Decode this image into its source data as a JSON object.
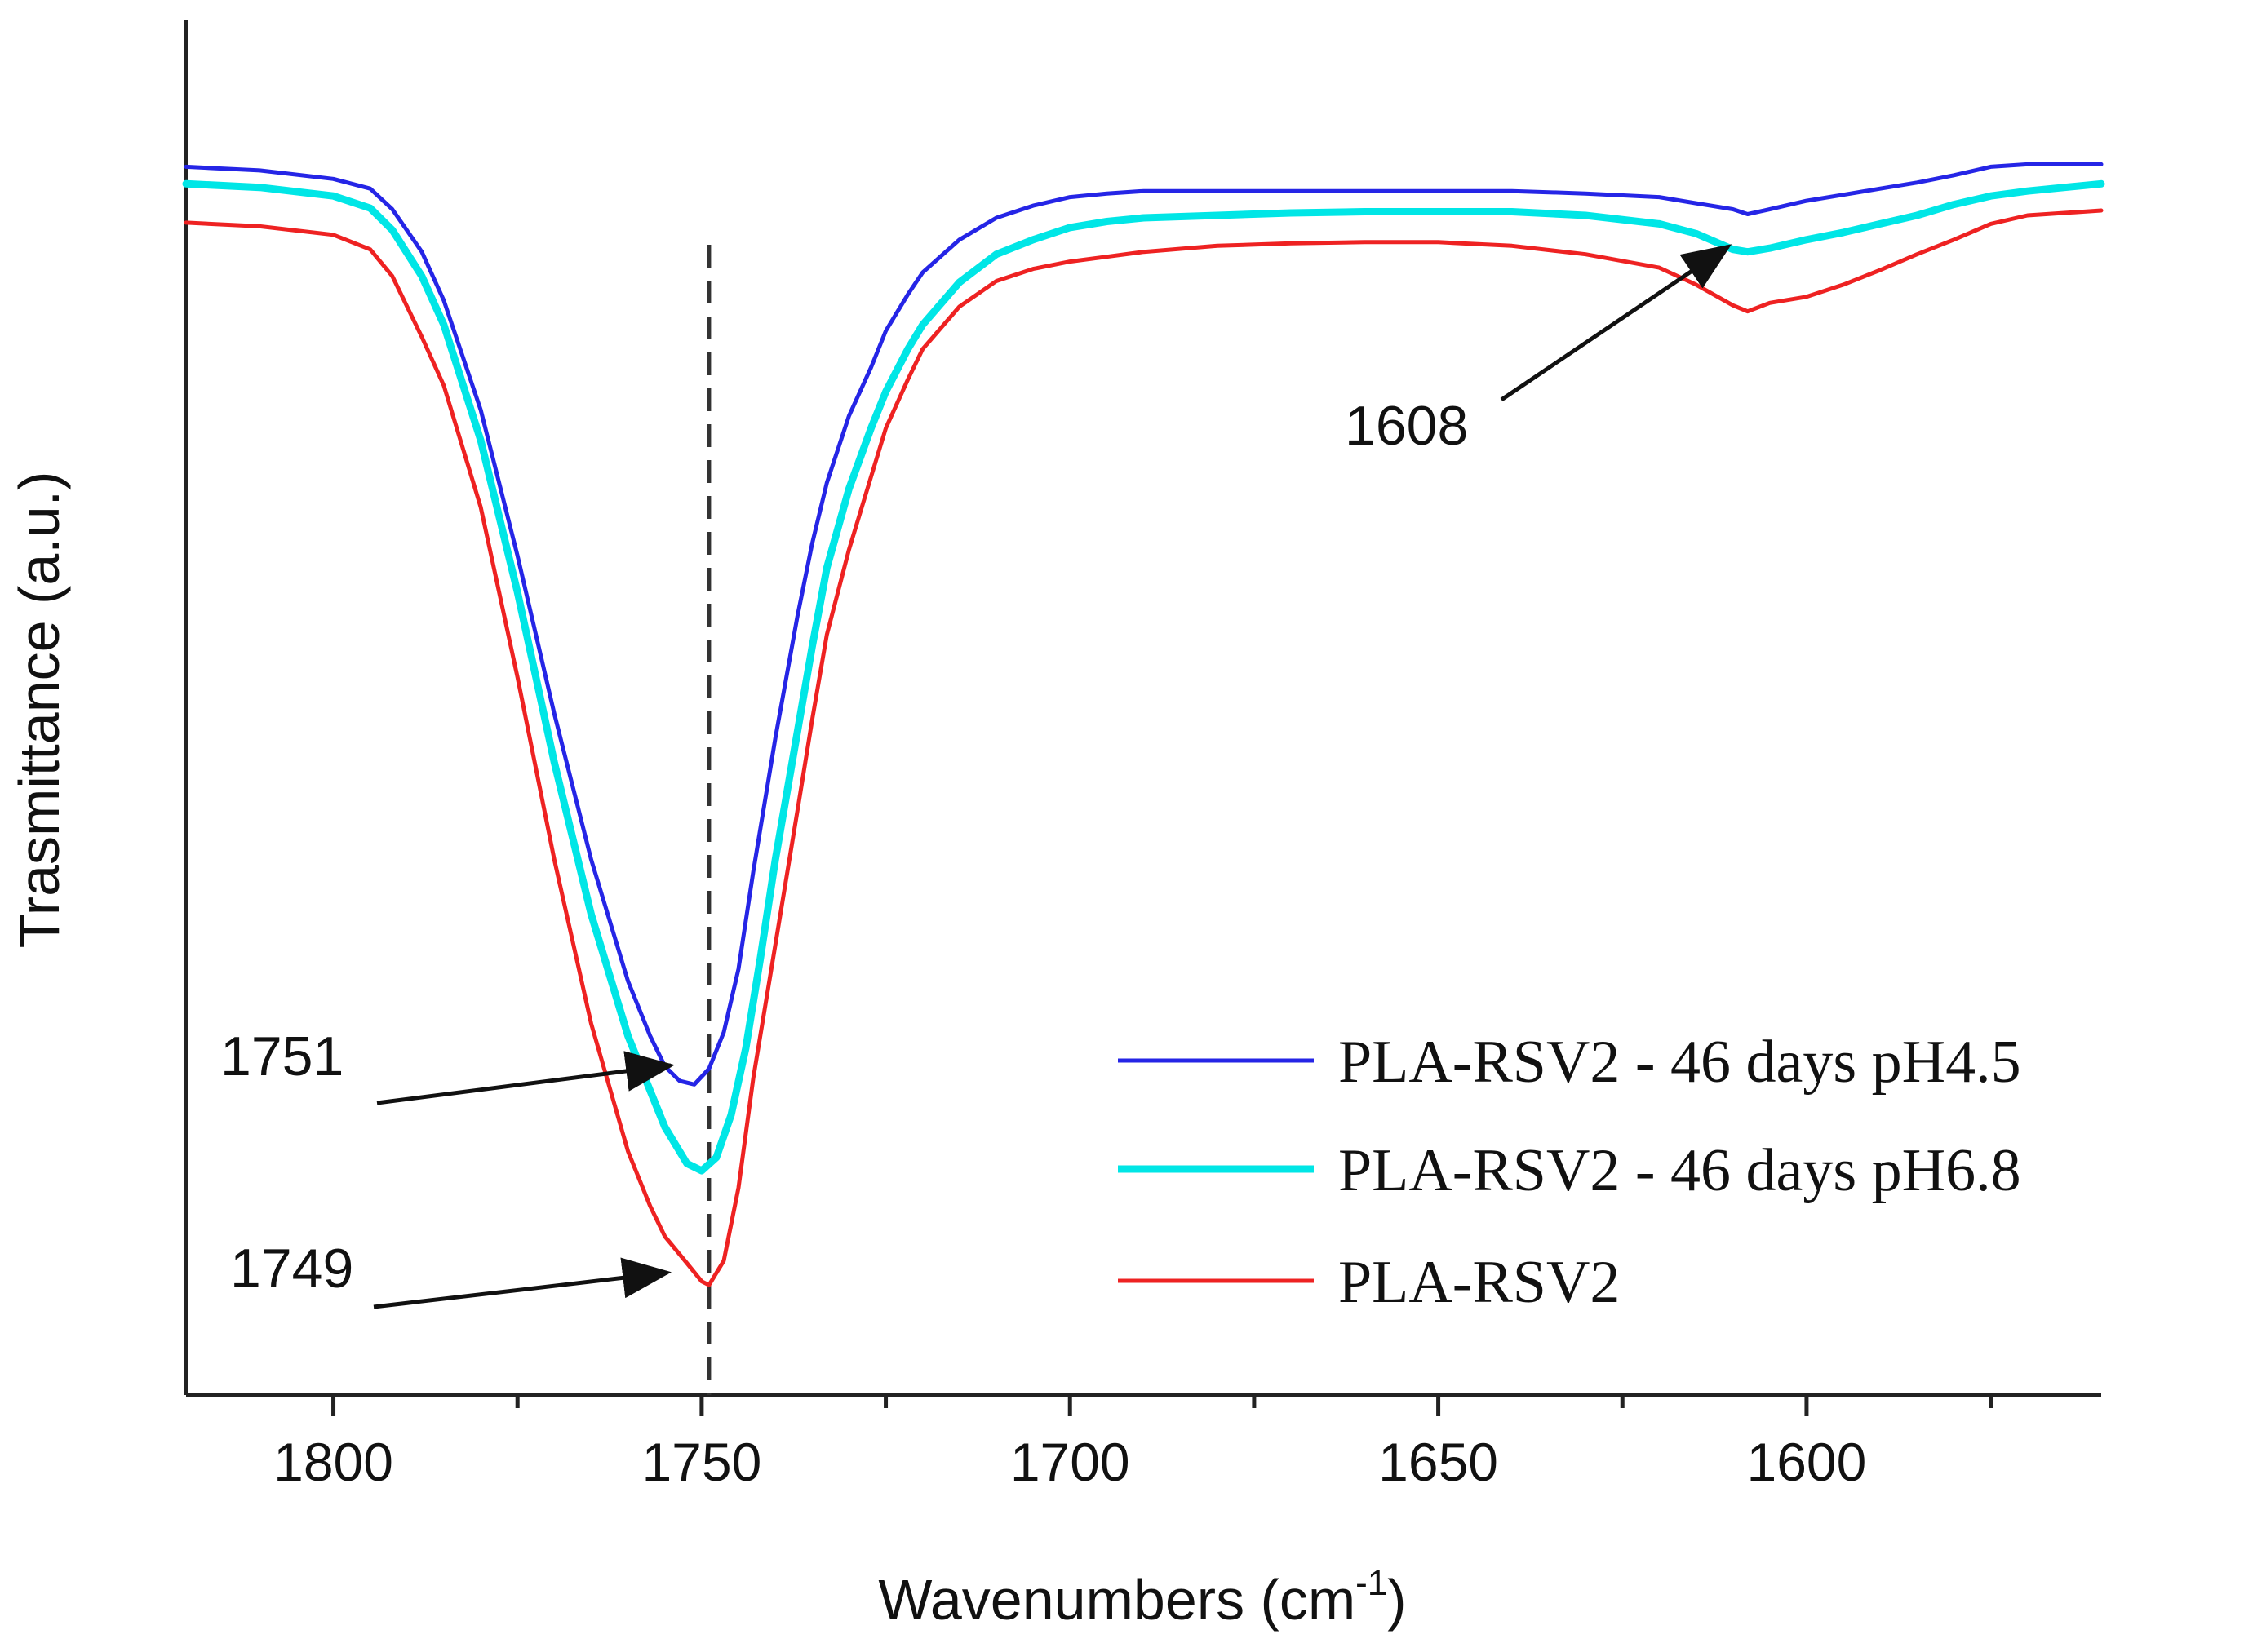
{
  "chart_data": {
    "type": "line",
    "title": "",
    "xlabel": "Wavenumbers (cm",
    "xlabel_superscript": "-1",
    "xlabel_suffix": ")",
    "ylabel": "Trasmittance (a.u.)",
    "xlim": [
      1820,
      1560
    ],
    "ylim": [
      0,
      100
    ],
    "x_reversed": true,
    "x_ticks": [
      1800,
      1750,
      1700,
      1650,
      1600
    ],
    "y_ticks_shown": false,
    "grid": false,
    "legend_position": "bottom-right",
    "series": [
      {
        "name": "PLA-RSV2 - 46 days pH4.5",
        "color": "#2525e6",
        "x": [
          1820,
          1810,
          1800,
          1795,
          1792,
          1788,
          1785,
          1780,
          1775,
          1770,
          1765,
          1760,
          1757,
          1755,
          1753,
          1751,
          1749,
          1747,
          1745,
          1743,
          1740,
          1737,
          1735,
          1733,
          1730,
          1727,
          1725,
          1722,
          1720,
          1715,
          1710,
          1705,
          1700,
          1695,
          1690,
          1680,
          1670,
          1660,
          1650,
          1640,
          1630,
          1620,
          1615,
          1610,
          1608,
          1605,
          1600,
          1595,
          1590,
          1585,
          1580,
          1575,
          1570,
          1560
        ],
        "y": [
          94,
          93.7,
          93,
          92.2,
          90.5,
          87,
          83,
          74,
          62,
          49,
          37,
          27,
          22.5,
          20,
          18.8,
          18.5,
          19.8,
          22.8,
          28,
          36,
          47,
          57,
          63,
          68,
          73.5,
          77.5,
          80.5,
          83.5,
          85.3,
          88,
          89.8,
          90.8,
          91.5,
          91.8,
          92,
          92,
          92,
          92,
          92,
          92,
          91.8,
          91.5,
          91,
          90.5,
          90.1,
          90.5,
          91.2,
          91.7,
          92.2,
          92.7,
          93.3,
          94,
          94.2,
          94.2
        ]
      },
      {
        "name": "PLA-RSV2 - 46 days pH6.8",
        "color": "#00e6e6",
        "x": [
          1820,
          1810,
          1800,
          1795,
          1792,
          1788,
          1785,
          1780,
          1775,
          1770,
          1765,
          1760,
          1757,
          1755,
          1752,
          1750,
          1748,
          1746,
          1744,
          1742,
          1740,
          1737,
          1735,
          1733,
          1730,
          1727,
          1725,
          1722,
          1720,
          1715,
          1710,
          1705,
          1700,
          1695,
          1690,
          1680,
          1670,
          1660,
          1650,
          1640,
          1630,
          1620,
          1615,
          1610,
          1608,
          1605,
          1600,
          1595,
          1590,
          1585,
          1580,
          1575,
          1570,
          1560
        ],
        "y": [
          92.6,
          92.3,
          91.6,
          90.6,
          88.8,
          85,
          81,
          71.5,
          59,
          45,
          32.5,
          22.5,
          18,
          15,
          12,
          11.4,
          12.5,
          16,
          21.5,
          29,
          37,
          47.5,
          54.5,
          61,
          67.5,
          72.5,
          75.5,
          79,
          81,
          84.5,
          86.8,
          88,
          89,
          89.5,
          89.8,
          90,
          90.2,
          90.3,
          90.3,
          90.3,
          90,
          89.3,
          88.5,
          87.2,
          87,
          87.3,
          88,
          88.6,
          89.3,
          90,
          90.9,
          91.6,
          92,
          92.6
        ]
      },
      {
        "name": "PLA-RSV2",
        "color": "#ee2222",
        "x": [
          1820,
          1810,
          1800,
          1795,
          1792,
          1788,
          1785,
          1780,
          1775,
          1770,
          1765,
          1760,
          1757,
          1755,
          1752,
          1750,
          1749,
          1747,
          1745,
          1743,
          1740,
          1737,
          1735,
          1733,
          1730,
          1727,
          1725,
          1722,
          1720,
          1715,
          1710,
          1705,
          1700,
          1695,
          1690,
          1680,
          1670,
          1660,
          1650,
          1640,
          1630,
          1620,
          1615,
          1610,
          1608,
          1605,
          1600,
          1595,
          1590,
          1585,
          1580,
          1575,
          1570,
          1560
        ],
        "y": [
          89.4,
          89.1,
          88.4,
          87.2,
          85,
          80,
          76,
          66,
          52,
          37,
          23.5,
          13,
          8.5,
          6,
          3.8,
          2.3,
          2,
          4,
          10,
          19,
          30,
          41,
          48.5,
          55.5,
          62.5,
          68.5,
          72.5,
          76.5,
          79,
          82.5,
          84.6,
          85.6,
          86.2,
          86.6,
          87,
          87.5,
          87.7,
          87.8,
          87.8,
          87.5,
          86.8,
          85.7,
          84.3,
          82.6,
          82.1,
          82.8,
          83.3,
          84.3,
          85.5,
          86.8,
          88,
          89.3,
          90,
          90.4
        ]
      }
    ],
    "annotations": [
      {
        "text": "1751",
        "points_to_x": 1751
      },
      {
        "text": "1749",
        "points_to_x": 1749
      },
      {
        "text": "1608",
        "points_to_x": 1608
      }
    ],
    "reference_line_x": 1749
  }
}
